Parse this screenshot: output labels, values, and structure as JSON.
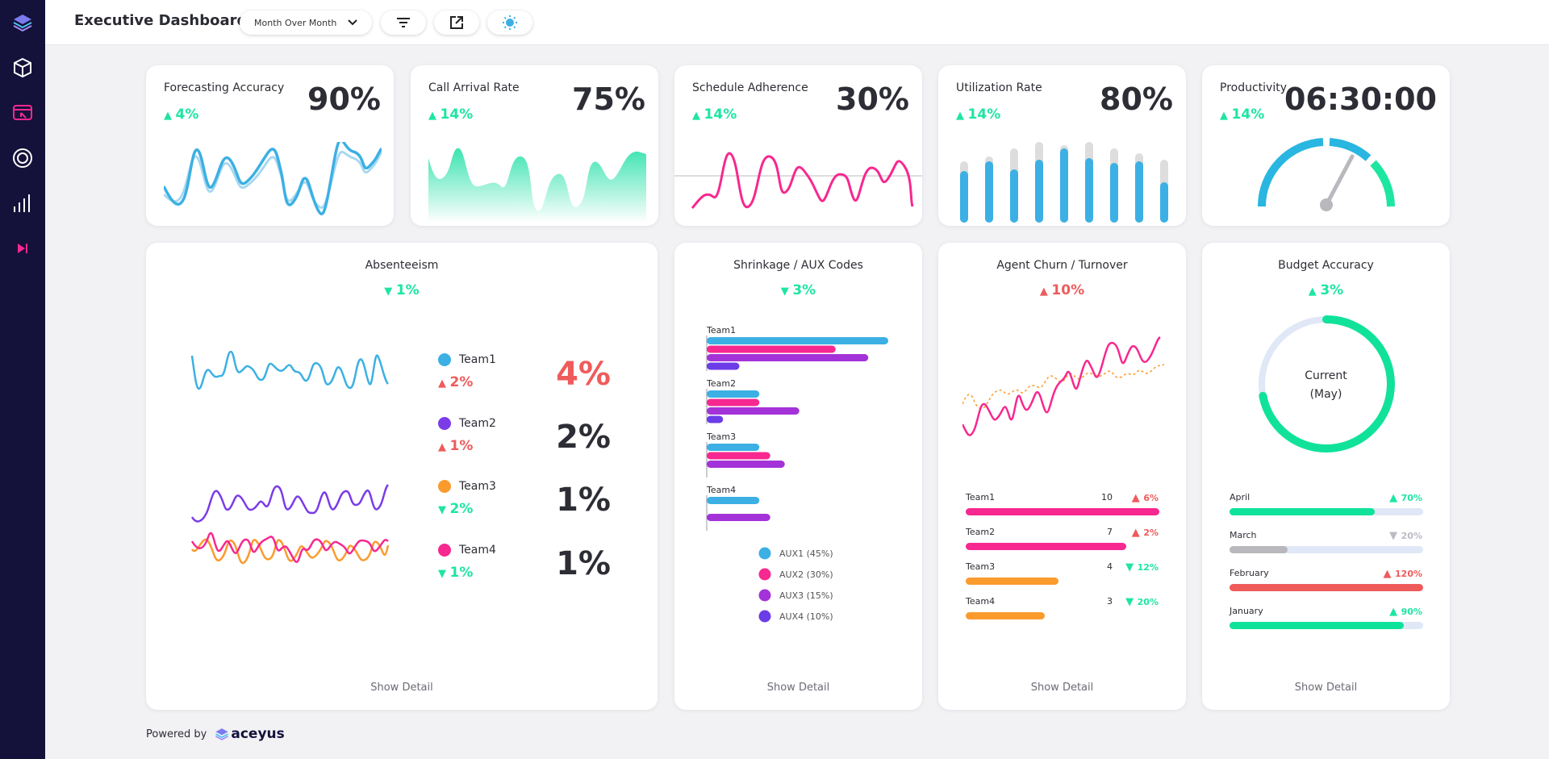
{
  "header": {
    "title": "Executive Dashboard",
    "period": "Month Over Month",
    "icons": [
      "filter-icon",
      "external-link-icon",
      "sun-icon"
    ]
  },
  "sidebar": {
    "icons": [
      "layers-icon",
      "cube-icon",
      "display-icon",
      "target-icon",
      "bar-chart-icon",
      "skip-forward-icon"
    ]
  },
  "kpis": [
    {
      "title": "Forecasting Accuracy",
      "value": "90%",
      "delta": "4%",
      "dir": "up"
    },
    {
      "title": "Call Arrival Rate",
      "value": "75%",
      "delta": "14%",
      "dir": "up"
    },
    {
      "title": "Schedule Adherence",
      "value": "30%",
      "delta": "14%",
      "dir": "up"
    },
    {
      "title": "Utilization Rate",
      "value": "80%",
      "delta": "14%",
      "dir": "up"
    },
    {
      "title": "Productivity",
      "value": "06:30:00",
      "delta": "14%",
      "dir": "up"
    }
  ],
  "absenteeism": {
    "title": "Absenteeism",
    "delta": "1%",
    "teams": [
      {
        "name": "Team1",
        "delta": "2%",
        "dir": "up",
        "value": "4%",
        "color": "#3cb0e4"
      },
      {
        "name": "Team2",
        "delta": "1%",
        "dir": "up",
        "value": "2%",
        "color": "#7b3ce8"
      },
      {
        "name": "Team3",
        "delta": "2%",
        "dir": "down",
        "value": "1%",
        "color": "#fb9b2d"
      },
      {
        "name": "Team4",
        "delta": "1%",
        "dir": "down",
        "value": "1%",
        "color": "#f7288f"
      }
    ]
  },
  "shrinkage": {
    "title": "Shrinkage / AUX Codes",
    "delta": "3%",
    "chart_data": {
      "type": "bar",
      "categories": [
        "Team1",
        "Team2",
        "Team3",
        "Team4"
      ],
      "series": [
        {
          "name": "AUX1 (45%)",
          "color": "#3cb0e4",
          "values": [
            100,
            29,
            29,
            29
          ]
        },
        {
          "name": "AUX2 (30%)",
          "color": "#f7288f",
          "values": [
            71,
            29,
            35,
            0
          ]
        },
        {
          "name": "AUX3 (15%)",
          "color": "#a333d8",
          "values": [
            89,
            51,
            43,
            35
          ]
        },
        {
          "name": "AUX4 (10%)",
          "color": "#6b3ce8",
          "values": [
            18,
            9,
            0,
            0
          ]
        }
      ]
    }
  },
  "churn": {
    "title": "Agent Churn / Turnover",
    "delta": "10%",
    "rows": [
      {
        "name": "Team1",
        "value": "10",
        "delta": "6%",
        "dir": "up",
        "fill": 1.0,
        "color": "#f7288f"
      },
      {
        "name": "Team2",
        "value": "7",
        "delta": "2%",
        "dir": "up",
        "fill": 0.83,
        "color": "#f7288f"
      },
      {
        "name": "Team3",
        "value": "4",
        "delta": "12%",
        "dir": "down",
        "fill": 0.48,
        "color": "#fb9b2d"
      },
      {
        "name": "Team4",
        "value": "3",
        "delta": "20%",
        "dir": "down",
        "fill": 0.41,
        "color": "#fb9b2d"
      }
    ]
  },
  "budget": {
    "title": "Budget Accuracy",
    "delta": "3%",
    "center_line1": "Current",
    "center_line2": "(May)",
    "gauge": 0.72,
    "rows": [
      {
        "name": "April",
        "delta": "70%",
        "dir": "up",
        "fill": 0.75,
        "color": "#10e29a",
        "dcolor": "green"
      },
      {
        "name": "March",
        "delta": "20%",
        "dir": "down",
        "fill": 0.3,
        "color": "#b8b8bd",
        "dcolor": "grey"
      },
      {
        "name": "February",
        "delta": "120%",
        "dir": "up",
        "fill": 1.0,
        "color": "#ef5b5b",
        "dcolor": "red"
      },
      {
        "name": "January",
        "delta": "90%",
        "dir": "up",
        "fill": 0.9,
        "color": "#10e29a",
        "dcolor": "green"
      }
    ]
  },
  "show_detail": "Show Detail",
  "footer": {
    "powered": "Powered by",
    "brand": "aceyus"
  }
}
